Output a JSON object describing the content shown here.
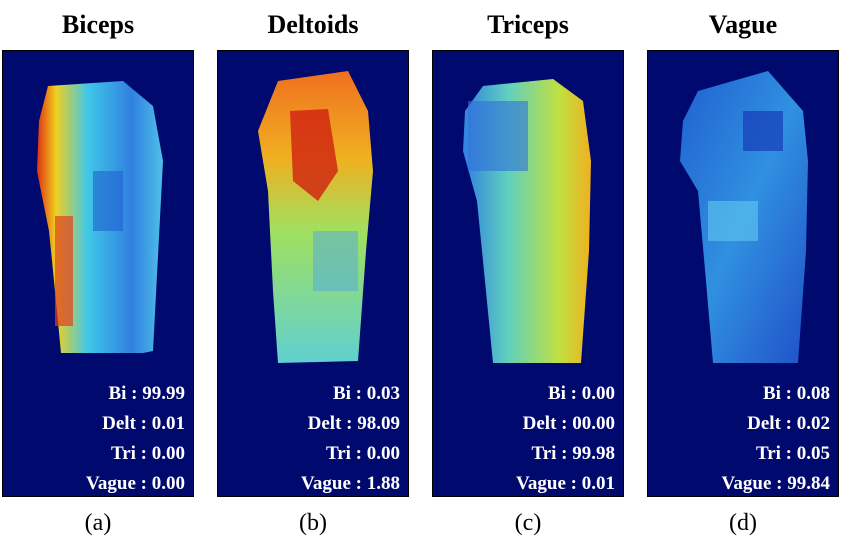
{
  "panels": [
    {
      "title": "Biceps",
      "caption": "(a)",
      "scores": [
        "Bi : 99.99",
        "Delt : 0.01",
        "Tri : 0.00",
        "Vague : 0.00"
      ]
    },
    {
      "title": "Deltoids",
      "caption": "(b)",
      "scores": [
        "Bi : 0.03",
        "Delt : 98.09",
        "Tri : 0.00",
        "Vague : 1.88"
      ]
    },
    {
      "title": "Triceps",
      "caption": "(c)",
      "scores": [
        "Bi : 0.00",
        "Delt : 00.00",
        "Tri : 99.98",
        "Vague : 0.01"
      ]
    },
    {
      "title": "Vague",
      "caption": "(d)",
      "scores": [
        "Bi : 0.08",
        "Delt : 0.02",
        "Tri : 0.05",
        "Vague : 99.84"
      ]
    }
  ],
  "colors": {
    "background": "#000a6e",
    "text": "#ffffff",
    "colormap": "jet"
  }
}
